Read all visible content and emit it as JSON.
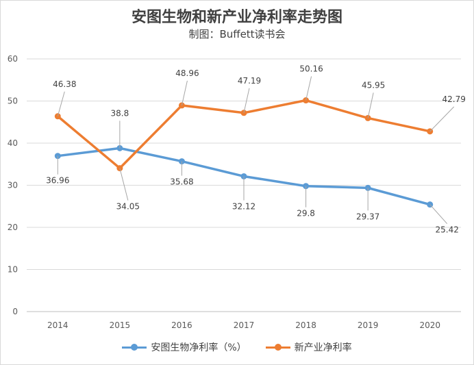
{
  "chart_data": {
    "type": "line",
    "title": "安图生物和新产业净利率走势图",
    "subtitle": "制图：Buffett读书会",
    "categories": [
      "2014",
      "2015",
      "2016",
      "2017",
      "2018",
      "2019",
      "2020"
    ],
    "ylim": [
      0,
      60
    ],
    "yticks": [
      "0",
      "10",
      "20",
      "30",
      "40",
      "50",
      "60"
    ],
    "grid": true,
    "legend": "bottom",
    "series": [
      {
        "name": "安图生物净利率（%）",
        "color": "#5b9bd5",
        "values": [
          36.96,
          38.8,
          35.68,
          32.12,
          29.8,
          29.37,
          25.42
        ],
        "labels": [
          "36.96",
          "38.8",
          "35.68",
          "32.12",
          "29.8",
          "29.37",
          "25.42"
        ]
      },
      {
        "name": "新产业净利率",
        "color": "#ed7d31",
        "values": [
          46.38,
          34.05,
          48.96,
          47.19,
          50.16,
          45.95,
          42.79
        ],
        "labels": [
          "46.38",
          "34.05",
          "48.96",
          "47.19",
          "50.16",
          "45.95",
          "42.79"
        ]
      }
    ]
  }
}
